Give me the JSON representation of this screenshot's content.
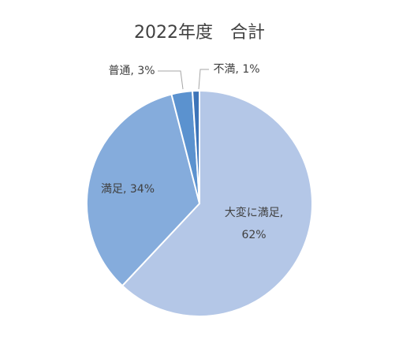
{
  "chart_data": {
    "type": "pie",
    "title": "2022年度　合計",
    "values": [
      62,
      34,
      3,
      1
    ],
    "value_labels": [
      "大変に満足, 62%",
      "満足, 34%",
      "普通, 3%",
      "不満, 1%"
    ],
    "colors": [
      "#b4c7e7",
      "#85acdc",
      "#5b92cf",
      "#3d74b8"
    ]
  }
}
